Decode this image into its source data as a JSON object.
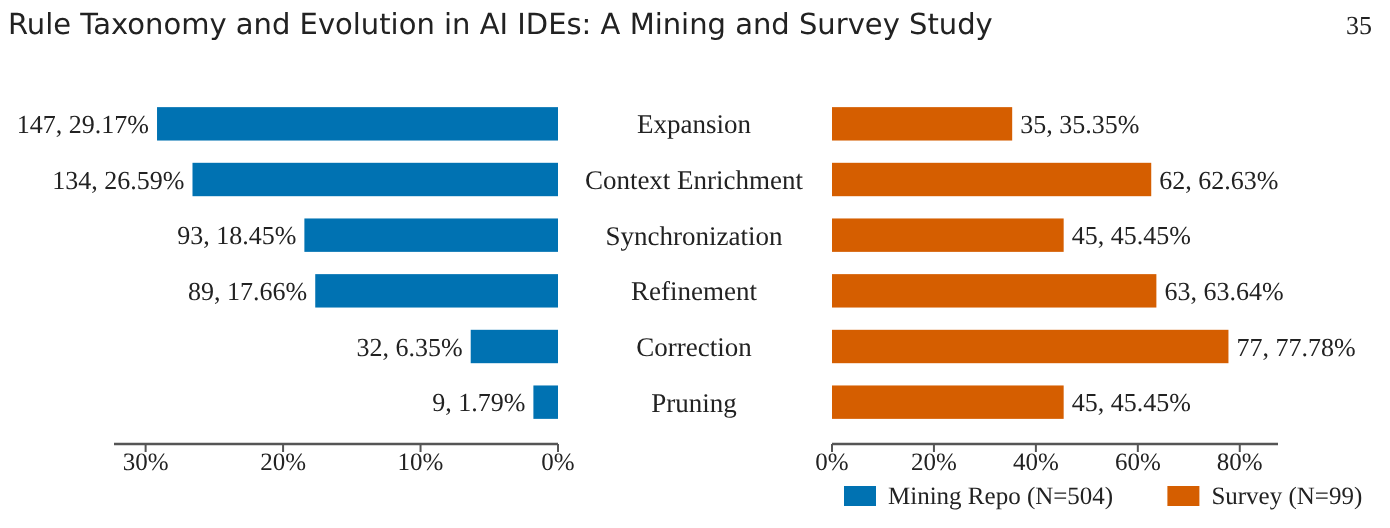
{
  "chart_data": [
    {
      "type": "bar",
      "orientation": "horizontal",
      "title": "Rule Taxonomy and Evolution in AI IDEs: A Mining and Survey Study",
      "annotations": [
        "35"
      ],
      "categories": [
        "Expansion",
        "Context Enrichment",
        "Synchronization",
        "Refinement",
        "Correction",
        "Pruning"
      ],
      "series": [
        {
          "name": "Mining Repo (N=504)",
          "color": "#0072b2",
          "values": [
            29.17,
            26.59,
            18.45,
            17.66,
            6.35,
            1.79
          ],
          "value_labels": [
            "147, 29.17%",
            "134, 26.59%",
            "93, 18.45%",
            "89, 17.66%",
            "32, 6.35%",
            "9, 1.79%"
          ]
        }
      ],
      "xlim": [
        32.3,
        0
      ],
      "xticks": [
        {
          "value": 30,
          "label": "30%"
        },
        {
          "value": 20,
          "label": "20%"
        },
        {
          "value": 10,
          "label": "10%"
        },
        {
          "value": 0,
          "label": "0%"
        }
      ],
      "grid": false,
      "legend": "bottom"
    },
    {
      "type": "bar",
      "orientation": "horizontal",
      "series": [
        {
          "name": "Survey (N=99)",
          "color": "#d55e00",
          "values": [
            35.35,
            62.63,
            45.45,
            63.64,
            77.78,
            45.45
          ],
          "value_labels": [
            "35, 35.35%",
            "62, 62.63%",
            "45, 45.45%",
            "63, 63.64%",
            "77, 77.78%",
            "45, 45.45%"
          ]
        }
      ],
      "xlim": [
        0,
        87.5
      ],
      "xticks": [
        {
          "value": 0,
          "label": "0%"
        },
        {
          "value": 20,
          "label": "20%"
        },
        {
          "value": 40,
          "label": "40%"
        },
        {
          "value": 60,
          "label": "60%"
        },
        {
          "value": 80,
          "label": "80%"
        }
      ],
      "grid": false,
      "legend": "bottom"
    }
  ]
}
